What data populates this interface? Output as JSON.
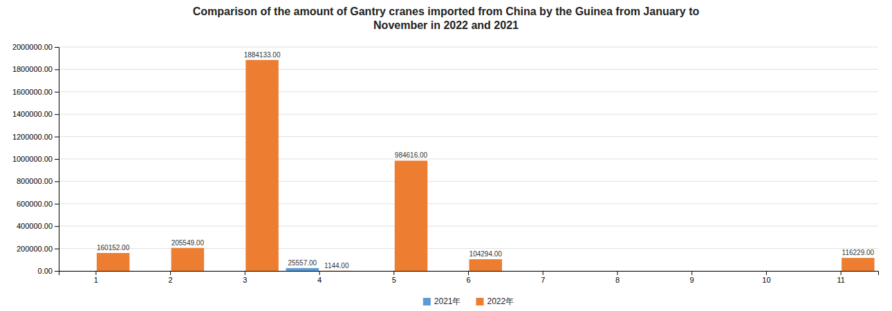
{
  "chart_data": {
    "type": "bar",
    "title": "Comparison of the amount of Gantry cranes imported from China by the Guinea from January to\nNovember in 2022 and 2021",
    "categories": [
      "1",
      "2",
      "3",
      "4",
      "5",
      "6",
      "7",
      "8",
      "9",
      "10",
      "11"
    ],
    "series": [
      {
        "name": "2021年",
        "color": "#5b9bd5",
        "values": [
          0,
          0,
          0,
          25557,
          0,
          0,
          0,
          0,
          0,
          0,
          0
        ],
        "value_labels": [
          null,
          null,
          null,
          "25557.00",
          null,
          null,
          null,
          null,
          null,
          null,
          null
        ]
      },
      {
        "name": "2022年",
        "color": "#ed7d31",
        "values": [
          160152,
          205549,
          1884133,
          1144,
          984616,
          104294,
          0,
          0,
          0,
          0,
          116229
        ],
        "value_labels": [
          "160152.00",
          "205549.00",
          "1884133.00",
          "1144.00",
          "984616.00",
          "104294.00",
          null,
          null,
          null,
          null,
          "116229.00"
        ]
      }
    ],
    "ylim": [
      0,
      2000000
    ],
    "yticks": [
      {
        "value": 0,
        "label": "0.00"
      },
      {
        "value": 200000,
        "label": "200000.00"
      },
      {
        "value": 400000,
        "label": "400000.00"
      },
      {
        "value": 600000,
        "label": "600000.00"
      },
      {
        "value": 800000,
        "label": "800000.00"
      },
      {
        "value": 1000000,
        "label": "1000000.00"
      },
      {
        "value": 1200000,
        "label": "1200000.00"
      },
      {
        "value": 1400000,
        "label": "1400000.00"
      },
      {
        "value": 1600000,
        "label": "1600000.00"
      },
      {
        "value": 1800000,
        "label": "1800000.00"
      },
      {
        "value": 2000000,
        "label": "2000000.00"
      }
    ],
    "grid": true,
    "legend": "bottom",
    "data_labels": true
  }
}
